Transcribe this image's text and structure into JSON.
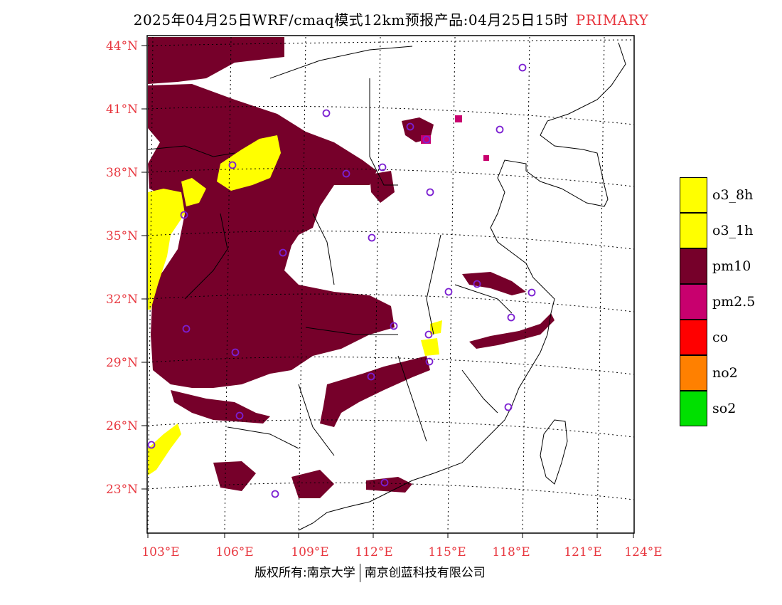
{
  "title": {
    "text": "2025年04月25日WRF/cmaq模式12km预报产品:04月25日15时",
    "tag": "PRIMARY"
  },
  "map": {
    "lon_labels": [
      "103°E",
      "106°E",
      "109°E",
      "112°E",
      "115°E",
      "118°E",
      "121°E",
      "124°E"
    ],
    "lat_labels": [
      "44°N",
      "41°N",
      "38°N",
      "35°N",
      "32°N",
      "29°N",
      "26°N",
      "23°N"
    ],
    "colors": {
      "pm10": "#76002a",
      "o3": "#ffff00",
      "pm25": "#c8006e",
      "station": "#7b1fd1",
      "boundary": "#000000",
      "label": "#e8373f"
    }
  },
  "legend": {
    "items": [
      {
        "label": "o3_8h",
        "color": "#ffff00"
      },
      {
        "label": "o3_1h",
        "color": "#ffff00"
      },
      {
        "label": "pm10",
        "color": "#76002a"
      },
      {
        "label": "pm2.5",
        "color": "#c8006e"
      },
      {
        "label": "co",
        "color": "#ff0000"
      },
      {
        "label": "no2",
        "color": "#ff8000"
      },
      {
        "label": "so2",
        "color": "#00e000"
      }
    ]
  },
  "footer": {
    "left": "版权所有:南京大学",
    "right": "南京创蓝科技有限公司"
  }
}
